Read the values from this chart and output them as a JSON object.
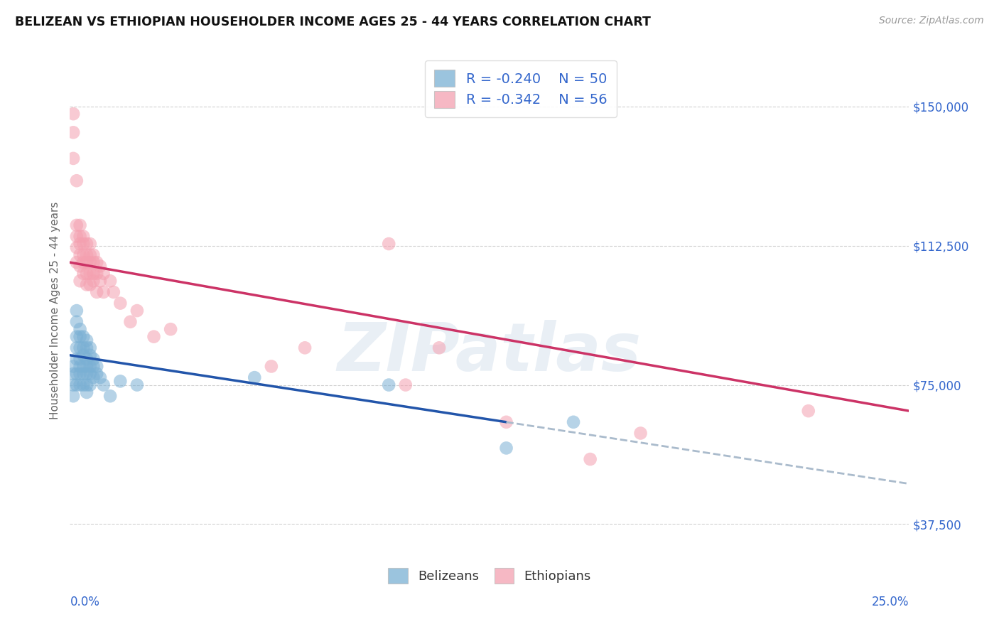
{
  "title": "BELIZEAN VS ETHIOPIAN HOUSEHOLDER INCOME AGES 25 - 44 YEARS CORRELATION CHART",
  "source": "Source: ZipAtlas.com",
  "ylabel": "Householder Income Ages 25 - 44 years",
  "xlim": [
    0.0,
    0.25
  ],
  "ylim": [
    25000,
    165000
  ],
  "yticks": [
    37500,
    75000,
    112500,
    150000
  ],
  "ytick_labels": [
    "$37,500",
    "$75,000",
    "$112,500",
    "$150,000"
  ],
  "background_color": "#ffffff",
  "grid_color": "#cccccc",
  "blue_scatter_color": "#7ab0d4",
  "pink_scatter_color": "#f4a0b0",
  "blue_line_color": "#2255aa",
  "pink_line_color": "#cc3366",
  "dashed_line_color": "#aabbcc",
  "R_blue": "-0.240",
  "N_blue": "50",
  "R_pink": "-0.342",
  "N_pink": "56",
  "watermark": "ZIPatlas",
  "belizean_label": "Belizeans",
  "ethiopian_label": "Ethiopians",
  "blue_x": [
    0.001,
    0.001,
    0.001,
    0.001,
    0.002,
    0.002,
    0.002,
    0.002,
    0.002,
    0.002,
    0.002,
    0.003,
    0.003,
    0.003,
    0.003,
    0.003,
    0.003,
    0.003,
    0.004,
    0.004,
    0.004,
    0.004,
    0.004,
    0.004,
    0.005,
    0.005,
    0.005,
    0.005,
    0.005,
    0.005,
    0.005,
    0.006,
    0.006,
    0.006,
    0.006,
    0.006,
    0.007,
    0.007,
    0.007,
    0.008,
    0.008,
    0.009,
    0.01,
    0.012,
    0.015,
    0.02,
    0.055,
    0.095,
    0.13,
    0.15
  ],
  "blue_y": [
    80000,
    78000,
    75000,
    72000,
    95000,
    92000,
    88000,
    85000,
    82000,
    78000,
    75000,
    90000,
    88000,
    85000,
    82000,
    80000,
    78000,
    75000,
    88000,
    85000,
    83000,
    80000,
    78000,
    75000,
    87000,
    85000,
    82000,
    80000,
    78000,
    75000,
    73000,
    85000,
    83000,
    80000,
    78000,
    75000,
    82000,
    80000,
    77000,
    80000,
    78000,
    77000,
    75000,
    72000,
    76000,
    75000,
    77000,
    75000,
    58000,
    65000
  ],
  "pink_x": [
    0.001,
    0.001,
    0.001,
    0.002,
    0.002,
    0.002,
    0.002,
    0.002,
    0.003,
    0.003,
    0.003,
    0.003,
    0.003,
    0.003,
    0.004,
    0.004,
    0.004,
    0.004,
    0.004,
    0.005,
    0.005,
    0.005,
    0.005,
    0.005,
    0.006,
    0.006,
    0.006,
    0.006,
    0.006,
    0.007,
    0.007,
    0.007,
    0.007,
    0.008,
    0.008,
    0.008,
    0.009,
    0.009,
    0.01,
    0.01,
    0.012,
    0.013,
    0.015,
    0.018,
    0.02,
    0.025,
    0.03,
    0.06,
    0.07,
    0.095,
    0.1,
    0.11,
    0.13,
    0.155,
    0.17,
    0.22
  ],
  "pink_y": [
    148000,
    143000,
    136000,
    130000,
    118000,
    115000,
    112000,
    108000,
    118000,
    115000,
    113000,
    110000,
    107000,
    103000,
    115000,
    113000,
    110000,
    108000,
    105000,
    113000,
    110000,
    108000,
    105000,
    102000,
    113000,
    110000,
    108000,
    105000,
    102000,
    110000,
    108000,
    105000,
    103000,
    108000,
    105000,
    100000,
    107000,
    103000,
    105000,
    100000,
    103000,
    100000,
    97000,
    92000,
    95000,
    88000,
    90000,
    80000,
    85000,
    113000,
    75000,
    85000,
    65000,
    55000,
    62000,
    68000
  ],
  "blue_line_x0": 0.0,
  "blue_line_y0": 83000,
  "blue_line_x1": 0.13,
  "blue_line_y1": 65000,
  "pink_line_x0": 0.0,
  "pink_line_y0": 108000,
  "pink_line_x1": 0.25,
  "pink_line_y1": 68000
}
